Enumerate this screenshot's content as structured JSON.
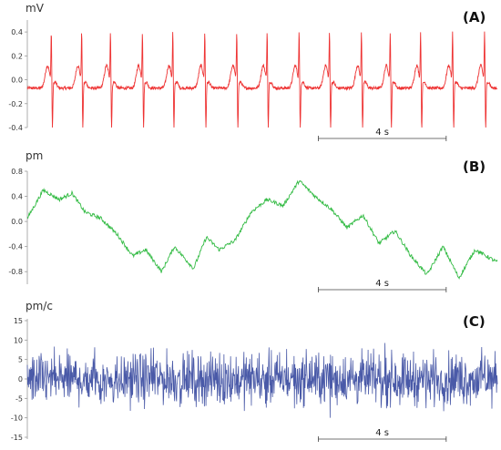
{
  "chart_data": [
    {
      "type": "line",
      "panel_label": "(A)",
      "ylabel": "mV",
      "color": "#ee3333",
      "ylim": [
        -0.4,
        0.5
      ],
      "yticks": [
        "0.4",
        "0.2",
        "0.0",
        "-0.2",
        "-0.4"
      ],
      "ytick_values": [
        0.4,
        0.2,
        0.0,
        -0.2,
        -0.4
      ],
      "duration_s": 14.7,
      "scale_bar": {
        "label": "4 s",
        "start_s": 9.1,
        "seconds": 4
      },
      "beat_times_s": [
        0.75,
        1.7,
        2.6,
        3.6,
        4.55,
        5.55,
        6.55,
        7.5,
        8.5,
        9.45,
        10.45,
        11.35,
        12.3,
        13.3,
        14.3
      ],
      "r_peak_mV": 0.43,
      "s_trough_mV": -0.38,
      "t_wave_mV": 0.14,
      "baseline_mV": -0.07
    },
    {
      "type": "line",
      "panel_label": "(B)",
      "ylabel": "pm",
      "color": "#33bb44",
      "ylim": [
        -1.0,
        0.8
      ],
      "yticks": [
        "0.8",
        "0.4",
        "0.0",
        "-0.4",
        "-0.8"
      ],
      "ytick_values": [
        0.8,
        0.4,
        0.0,
        -0.4,
        -0.8
      ],
      "duration_s": 14.7,
      "scale_bar": {
        "label": "4 s",
        "start_s": 9.1,
        "seconds": 4
      },
      "x": [
        0,
        0.5,
        1.0,
        1.4,
        1.8,
        2.3,
        2.8,
        3.3,
        3.7,
        4.2,
        4.6,
        5.2,
        5.6,
        6.0,
        6.5,
        7.0,
        7.5,
        8.0,
        8.5,
        9.0,
        9.5,
        10.0,
        10.5,
        11.0,
        11.5,
        12.0,
        12.5,
        13.0,
        13.5,
        14.0,
        14.7
      ],
      "y": [
        0.05,
        0.5,
        0.35,
        0.45,
        0.15,
        0.05,
        -0.2,
        -0.55,
        -0.45,
        -0.8,
        -0.4,
        -0.75,
        -0.25,
        -0.45,
        -0.3,
        0.15,
        0.35,
        0.25,
        0.65,
        0.4,
        0.2,
        -0.1,
        0.1,
        -0.35,
        -0.15,
        -0.55,
        -0.85,
        -0.4,
        -0.9,
        -0.45,
        -0.65
      ]
    },
    {
      "type": "line",
      "panel_label": "(C)",
      "ylabel": "pm/c",
      "color": "#4a5aa8",
      "ylim": [
        -15,
        15
      ],
      "yticks": [
        "15",
        "10",
        "5",
        "0",
        "-5",
        "-10",
        "-15"
      ],
      "ytick_values": [
        15,
        10,
        5,
        0,
        -5,
        -10,
        -15
      ],
      "duration_s": 14.7,
      "scale_bar": {
        "label": "4 s",
        "start_s": 9.1,
        "seconds": 4
      },
      "noise_amplitude": 5,
      "peak_range": [
        -10,
        10
      ]
    }
  ]
}
